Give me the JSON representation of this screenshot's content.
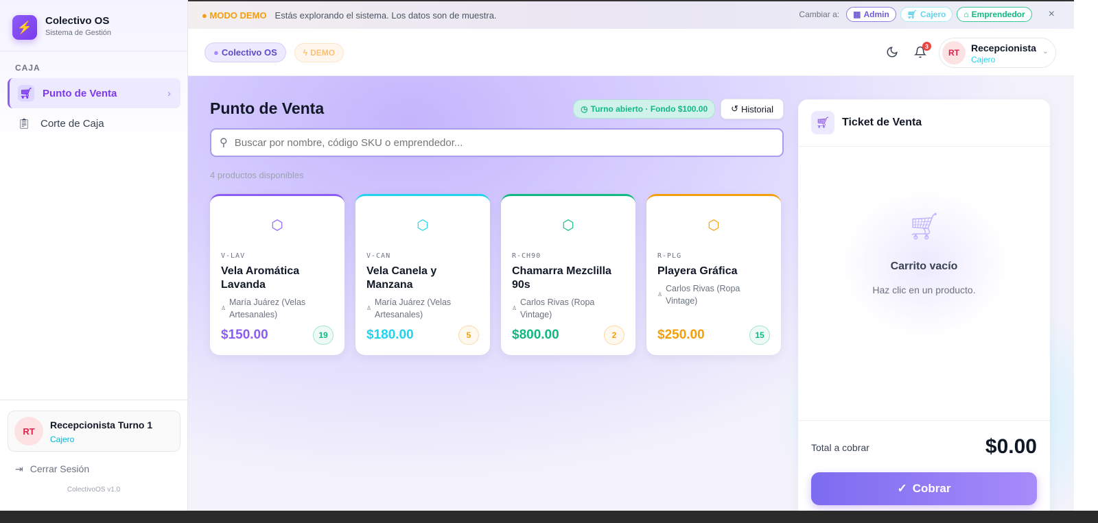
{
  "sidebar": {
    "brand": "Colectivo OS",
    "brand_sub": "Sistema de Gestión",
    "section": "CAJA",
    "items": [
      {
        "label": "Punto de Venta",
        "icon": "cart-icon",
        "active": true
      },
      {
        "label": "Corte de Caja",
        "icon": "clipboard-icon",
        "active": false
      }
    ],
    "user": {
      "initials": "RT",
      "name": "Recepcionista Turno 1",
      "role": "Cajero"
    },
    "logout": "Cerrar Sesión",
    "version": "ColectivoOS v1.0"
  },
  "banner": {
    "mode": "MODO DEMO",
    "message": "Estás explorando el sistema. Los datos son de muestra.",
    "switch_label": "Cambiar a:",
    "roles": [
      "Admin",
      "Cajero",
      "Emprendedor"
    ]
  },
  "header": {
    "org": "Colectivo OS",
    "demo": "DEMO",
    "notifications": "3",
    "user": {
      "initials": "RT",
      "name": "Recepcionista",
      "role": "Cajero"
    }
  },
  "main": {
    "title": "Punto de Venta",
    "shift": "Turno abierto · Fondo $100.00",
    "history": "Historial",
    "search_placeholder": "Buscar por nombre, código SKU o emprendedor...",
    "count": "4 productos disponibles",
    "products": [
      {
        "sku": "V-LAV",
        "name": "Vela Aromática Lavanda",
        "vendor": "María Juárez (Velas Artesanales)",
        "price": "$150.00",
        "stock": "19",
        "color": "#8b5cf6",
        "stock_color": "#10b981"
      },
      {
        "sku": "V-CAN",
        "name": "Vela Canela y Manzana",
        "vendor": "María Juárez (Velas Artesanales)",
        "price": "$180.00",
        "stock": "5",
        "color": "#22d3ee",
        "stock_color": "#f59e0b"
      },
      {
        "sku": "R-CH90",
        "name": "Chamarra Mezclilla 90s",
        "vendor": "Carlos Rivas (Ropa Vintage)",
        "price": "$800.00",
        "stock": "2",
        "color": "#10b981",
        "stock_color": "#f59e0b"
      },
      {
        "sku": "R-PLG",
        "name": "Playera Gráfica",
        "vendor": "Carlos Rivas (Ropa Vintage)",
        "price": "$250.00",
        "stock": "15",
        "color": "#f59e0b",
        "stock_color": "#10b981"
      }
    ]
  },
  "ticket": {
    "title": "Ticket de Venta",
    "empty_title": "Carrito vacío",
    "empty_hint": "Haz clic en un producto.",
    "total_label": "Total a cobrar",
    "total": "$0.00",
    "charge": "Cobrar"
  }
}
